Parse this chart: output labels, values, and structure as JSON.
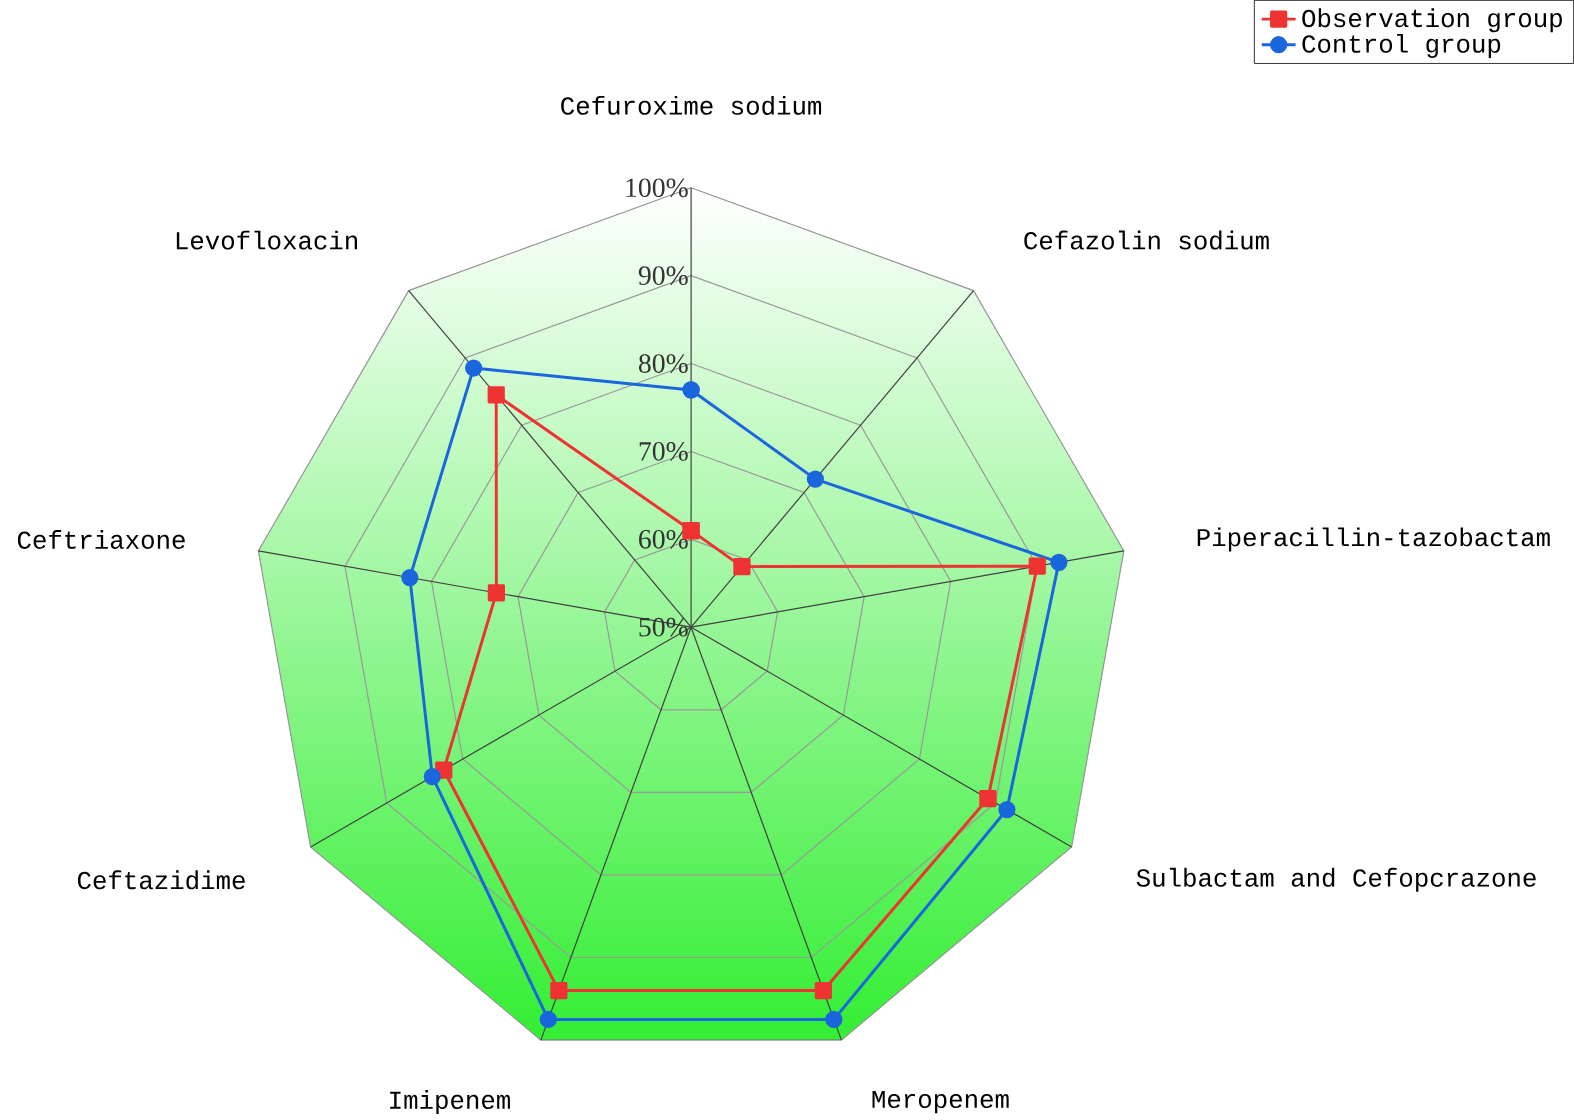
{
  "chart_data": {
    "type": "radar",
    "categories": [
      "Cefuroxime sodium",
      "Cefazolin sodium",
      "Piperacillin-tazobactam",
      "Sulbactam and Cefopcrazone",
      "Meropenem",
      "Imipenem",
      "Ceftazidime",
      "Ceftriaxone",
      "Levofloxacin"
    ],
    "series": [
      {
        "name": "Observation group",
        "color": "#ee3333",
        "marker": "square",
        "values": [
          61,
          59,
          90,
          89,
          94,
          94,
          82.5,
          72.5,
          84.5
        ]
      },
      {
        "name": "Control group",
        "color": "#1a66dd",
        "marker": "circle",
        "values": [
          77,
          72,
          92.5,
          91.5,
          97.5,
          97.5,
          84,
          82.5,
          88.5
        ]
      }
    ],
    "ylim": [
      50,
      100
    ],
    "yticks": [
      {
        "value": 50,
        "label": "50%"
      },
      {
        "value": 60,
        "label": "60%"
      },
      {
        "value": 70,
        "label": "70%"
      },
      {
        "value": 80,
        "label": "80%"
      },
      {
        "value": 90,
        "label": "90%"
      },
      {
        "value": 100,
        "label": "100%"
      }
    ],
    "grid": true,
    "legend": "top right"
  }
}
